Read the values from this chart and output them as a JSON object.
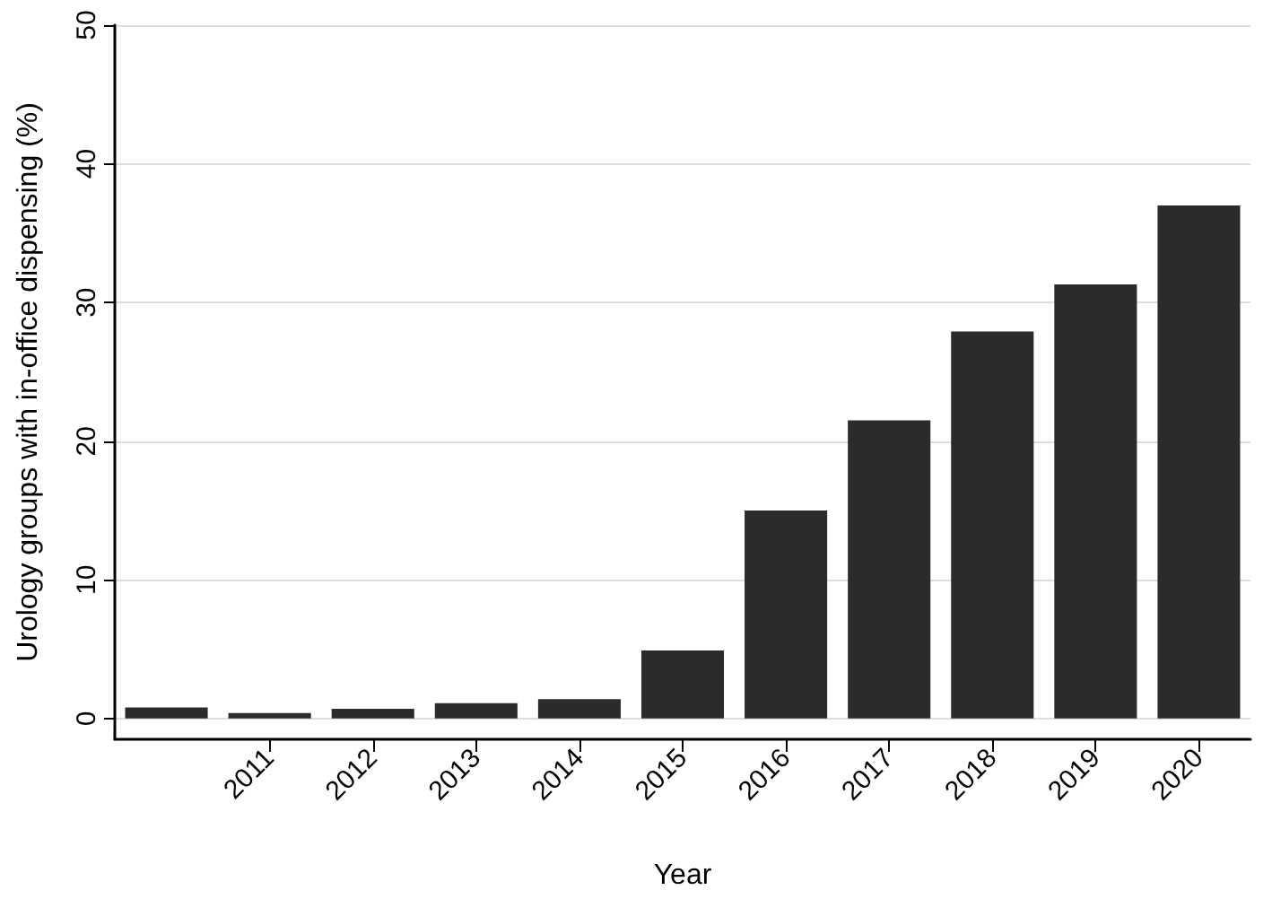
{
  "chart_data": {
    "type": "bar",
    "xlabel": "Year",
    "ylabel": "Urology groups with in-office dispensing (%)",
    "categories": [
      null,
      "2011",
      "2012",
      "2013",
      "2014",
      "2015",
      "2016",
      "2017",
      "2018",
      "2019",
      "2020"
    ],
    "values": [
      0.8,
      0.4,
      0.7,
      1.1,
      1.4,
      4.9,
      15.0,
      21.5,
      27.9,
      31.3,
      37.0
    ],
    "color": "#2b2b2b",
    "ylim": [
      -1.5,
      50
    ],
    "yticks": [
      0,
      10,
      20,
      30,
      40,
      50
    ],
    "grid": "y"
  }
}
